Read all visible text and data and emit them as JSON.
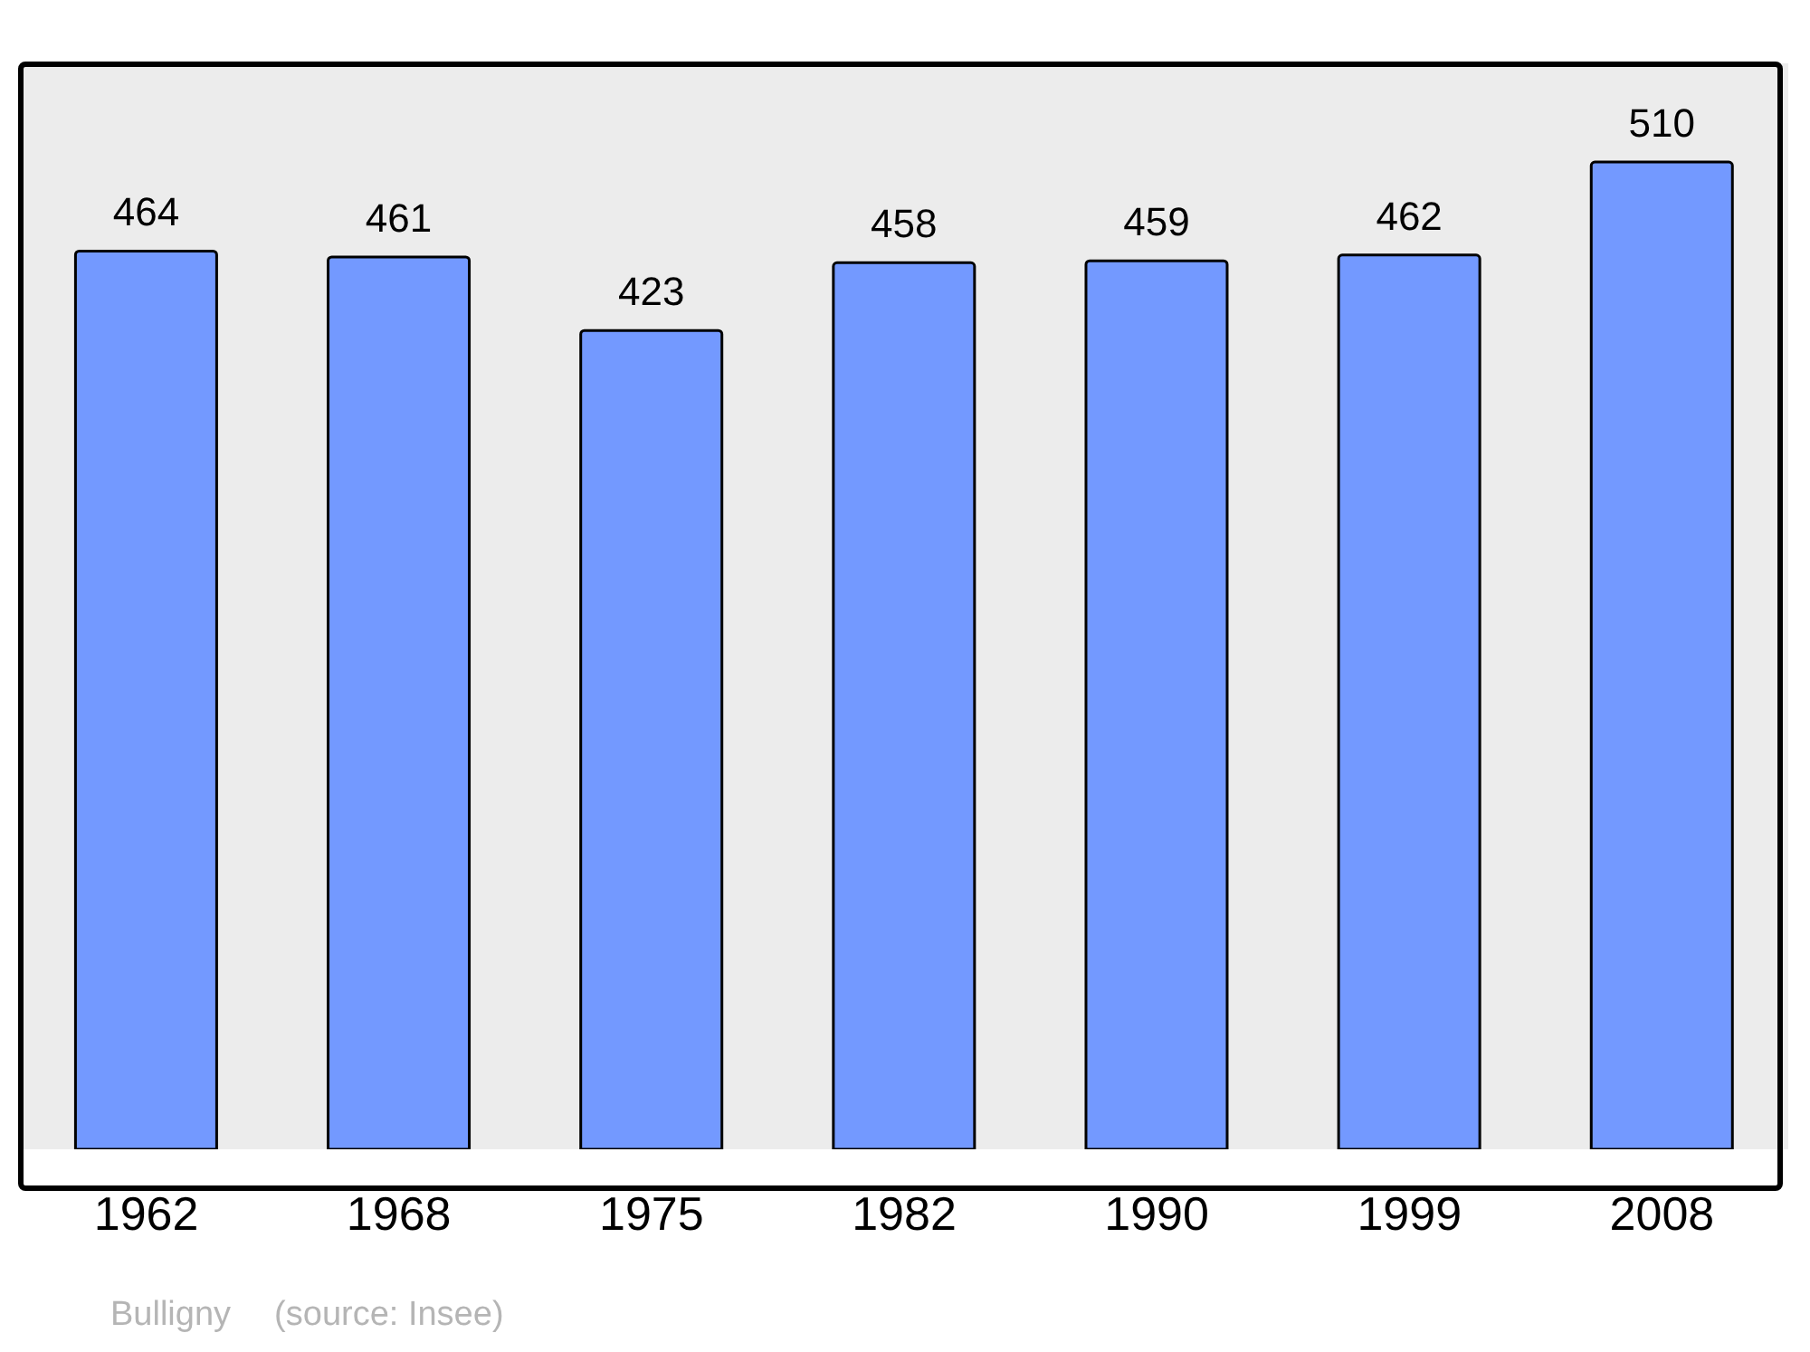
{
  "chart_data": {
    "type": "bar",
    "categories": [
      "1962",
      "1968",
      "1975",
      "1982",
      "1990",
      "1999",
      "2008"
    ],
    "values": [
      464,
      461,
      423,
      458,
      459,
      462,
      510
    ],
    "color": "#7399ff",
    "data_labels": true,
    "annotations": [
      "Bulligny",
      "(source: Insee)"
    ]
  }
}
